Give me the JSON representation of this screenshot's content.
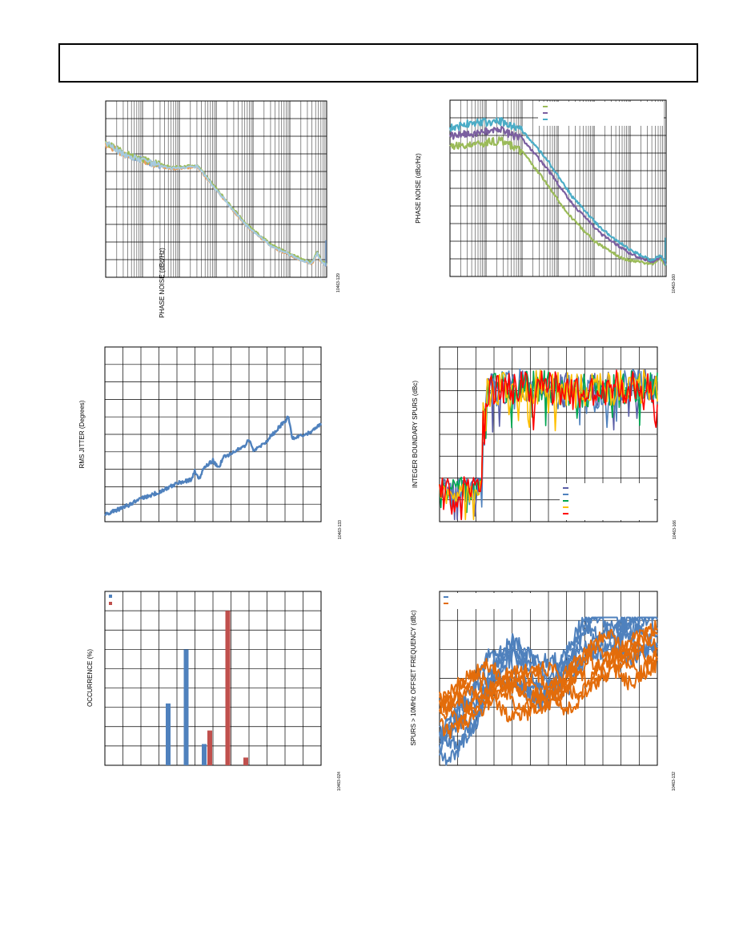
{
  "chart_data": [
    {
      "id": "c1",
      "type": "line",
      "title": "",
      "xlabel": "",
      "ylabel": "PHASE NOISE (dBc/Hz)",
      "figure_code": "10463-129",
      "x_scale": "log",
      "x_decades": 6,
      "y_divisions": 10,
      "grid": true,
      "series": [
        {
          "color": "#7aa0d0",
          "offset": 0
        },
        {
          "color": "#e8a060",
          "offset": 1
        },
        {
          "color": "#9bbb59",
          "offset": -1
        },
        {
          "color": "#a6cadf",
          "offset": 0.5
        }
      ],
      "curve": [
        [
          0,
          2.4
        ],
        [
          0.5,
          3.0
        ],
        [
          1.2,
          3.5
        ],
        [
          1.8,
          3.8
        ],
        [
          2.5,
          3.7
        ],
        [
          3.0,
          5.0
        ],
        [
          3.8,
          7.0
        ],
        [
          4.5,
          8.2
        ],
        [
          5.2,
          8.9
        ],
        [
          5.6,
          9.2
        ],
        [
          5.75,
          8.6
        ],
        [
          5.85,
          9.1
        ],
        [
          6,
          9.3
        ]
      ]
    },
    {
      "id": "c2",
      "type": "line",
      "title": "",
      "xlabel": "",
      "ylabel": "PHASE NOISE (dBc/Hz)",
      "figure_code": "10463-160",
      "x_scale": "log",
      "x_decades": 6,
      "y_divisions": 10,
      "grid": true,
      "legend": {
        "position": "top-right"
      },
      "series": [
        {
          "color": "#9bbb59",
          "curve": [
            [
              0,
              2.6
            ],
            [
              0.6,
              2.5
            ],
            [
              1.4,
              2.3
            ],
            [
              2.0,
              2.9
            ],
            [
              2.6,
              4.5
            ],
            [
              3.3,
              6.5
            ],
            [
              4.0,
              8.0
            ],
            [
              4.8,
              9.0
            ],
            [
              5.6,
              9.3
            ],
            [
              5.85,
              9.0
            ],
            [
              6,
              9.4
            ]
          ]
        },
        {
          "color": "#7b5fa0",
          "curve": [
            [
              0,
              2.0
            ],
            [
              0.6,
              1.9
            ],
            [
              1.4,
              1.7
            ],
            [
              2.0,
              2.2
            ],
            [
              2.7,
              3.9
            ],
            [
              3.4,
              5.9
            ],
            [
              4.2,
              7.6
            ],
            [
              5.0,
              8.7
            ],
            [
              5.6,
              9.2
            ],
            [
              5.85,
              8.9
            ],
            [
              6,
              9.3
            ]
          ]
        },
        {
          "color": "#4bacc6",
          "curve": [
            [
              0,
              1.6
            ],
            [
              0.6,
              1.3
            ],
            [
              1.4,
              1.2
            ],
            [
              2.0,
              1.7
            ],
            [
              2.7,
              3.4
            ],
            [
              3.4,
              5.5
            ],
            [
              4.2,
              7.3
            ],
            [
              5.0,
              8.5
            ],
            [
              5.6,
              9.1
            ],
            [
              5.85,
              8.8
            ],
            [
              6,
              9.2
            ]
          ]
        }
      ]
    },
    {
      "id": "c3",
      "type": "line",
      "title": "",
      "xlabel": "",
      "ylabel": "RMS JITTER (Degrees)",
      "figure_code": "10463-133",
      "x_divisions": 12,
      "y_divisions": 10,
      "grid": true,
      "series": [
        {
          "color": "#4f81bd",
          "points": [
            [
              0,
              9.6
            ],
            [
              1,
              9.2
            ],
            [
              2,
              8.7
            ],
            [
              3,
              8.3
            ],
            [
              4,
              7.8
            ],
            [
              4.8,
              7.6
            ],
            [
              5,
              7.1
            ],
            [
              5.2,
              7.6
            ],
            [
              5.5,
              6.9
            ],
            [
              6,
              6.5
            ],
            [
              6.3,
              6.9
            ],
            [
              6.6,
              6.3
            ],
            [
              7.2,
              6.0
            ],
            [
              7.8,
              5.6
            ],
            [
              8.0,
              5.3
            ],
            [
              8.2,
              5.9
            ],
            [
              8.8,
              5.6
            ],
            [
              9.4,
              4.9
            ],
            [
              10.2,
              4.0
            ],
            [
              10.4,
              5.2
            ],
            [
              11.2,
              5.0
            ],
            [
              12,
              4.4
            ]
          ]
        }
      ]
    },
    {
      "id": "c4",
      "type": "line",
      "title": "",
      "xlabel": "",
      "ylabel": "INTEGER BOUNDARY SPURS (dBc)",
      "figure_code": "10463-166",
      "x_divisions": 12,
      "y_divisions": 8,
      "grid": true,
      "legend": {
        "position": "bottom-right"
      },
      "series": [
        {
          "color": "#5b5ea6",
          "seed": 11
        },
        {
          "color": "#4f81bd",
          "seed": 23
        },
        {
          "color": "#00a651",
          "seed": 37
        },
        {
          "color": "#ffc000",
          "seed": 51
        },
        {
          "color": "#ff0000",
          "seed": 67
        }
      ]
    },
    {
      "id": "c5",
      "type": "bar",
      "title": "",
      "xlabel": "",
      "ylabel": "OCCURRENCE (%)",
      "figure_code": "10463-024",
      "x_divisions": 12,
      "y_divisions": 9,
      "ylim": [
        0,
        9
      ],
      "grid": true,
      "legend": {
        "position": "top-left"
      },
      "series": [
        {
          "color": "#4f81bd",
          "values": [
            0,
            0,
            0,
            3.2,
            6.0,
            1.1,
            0,
            0,
            0,
            0,
            0,
            0
          ]
        },
        {
          "color": "#c0504d",
          "values": [
            0,
            0,
            0,
            0,
            0,
            1.8,
            8.0,
            0.4,
            0,
            0,
            0,
            0
          ]
        }
      ]
    },
    {
      "id": "c6",
      "type": "line",
      "title": "",
      "xlabel": "",
      "ylabel": "SPURS > 10MHz OFFSET FREQUENCY (dBc)",
      "figure_code": "10463-132",
      "x_divisions": 12,
      "y_divisions": 6,
      "grid": true,
      "legend": {
        "position": "top-left"
      },
      "series": [
        {
          "color": "#4f81bd",
          "seed": 5,
          "trend": [
            [
              0,
              5.2
            ],
            [
              2,
              4.0
            ],
            [
              3,
              2.8
            ],
            [
              4,
              2.1
            ],
            [
              5,
              3.0
            ],
            [
              6,
              3.4
            ],
            [
              7,
              2.5
            ],
            [
              8,
              1.6
            ],
            [
              9,
              1.5
            ],
            [
              10,
              1.4
            ],
            [
              11,
              1.3
            ],
            [
              12,
              1.4
            ]
          ]
        },
        {
          "color": "#e36c0a",
          "seed": 9,
          "trend": [
            [
              0,
              4.0
            ],
            [
              2,
              3.6
            ],
            [
              3,
              3.4
            ],
            [
              4,
              3.3
            ],
            [
              5,
              3.5
            ],
            [
              6,
              3.6
            ],
            [
              7,
              3.2
            ],
            [
              8,
              2.8
            ],
            [
              9,
              2.5
            ],
            [
              10,
              2.3
            ],
            [
              11,
              2.1
            ],
            [
              12,
              2.0
            ]
          ]
        }
      ]
    }
  ]
}
